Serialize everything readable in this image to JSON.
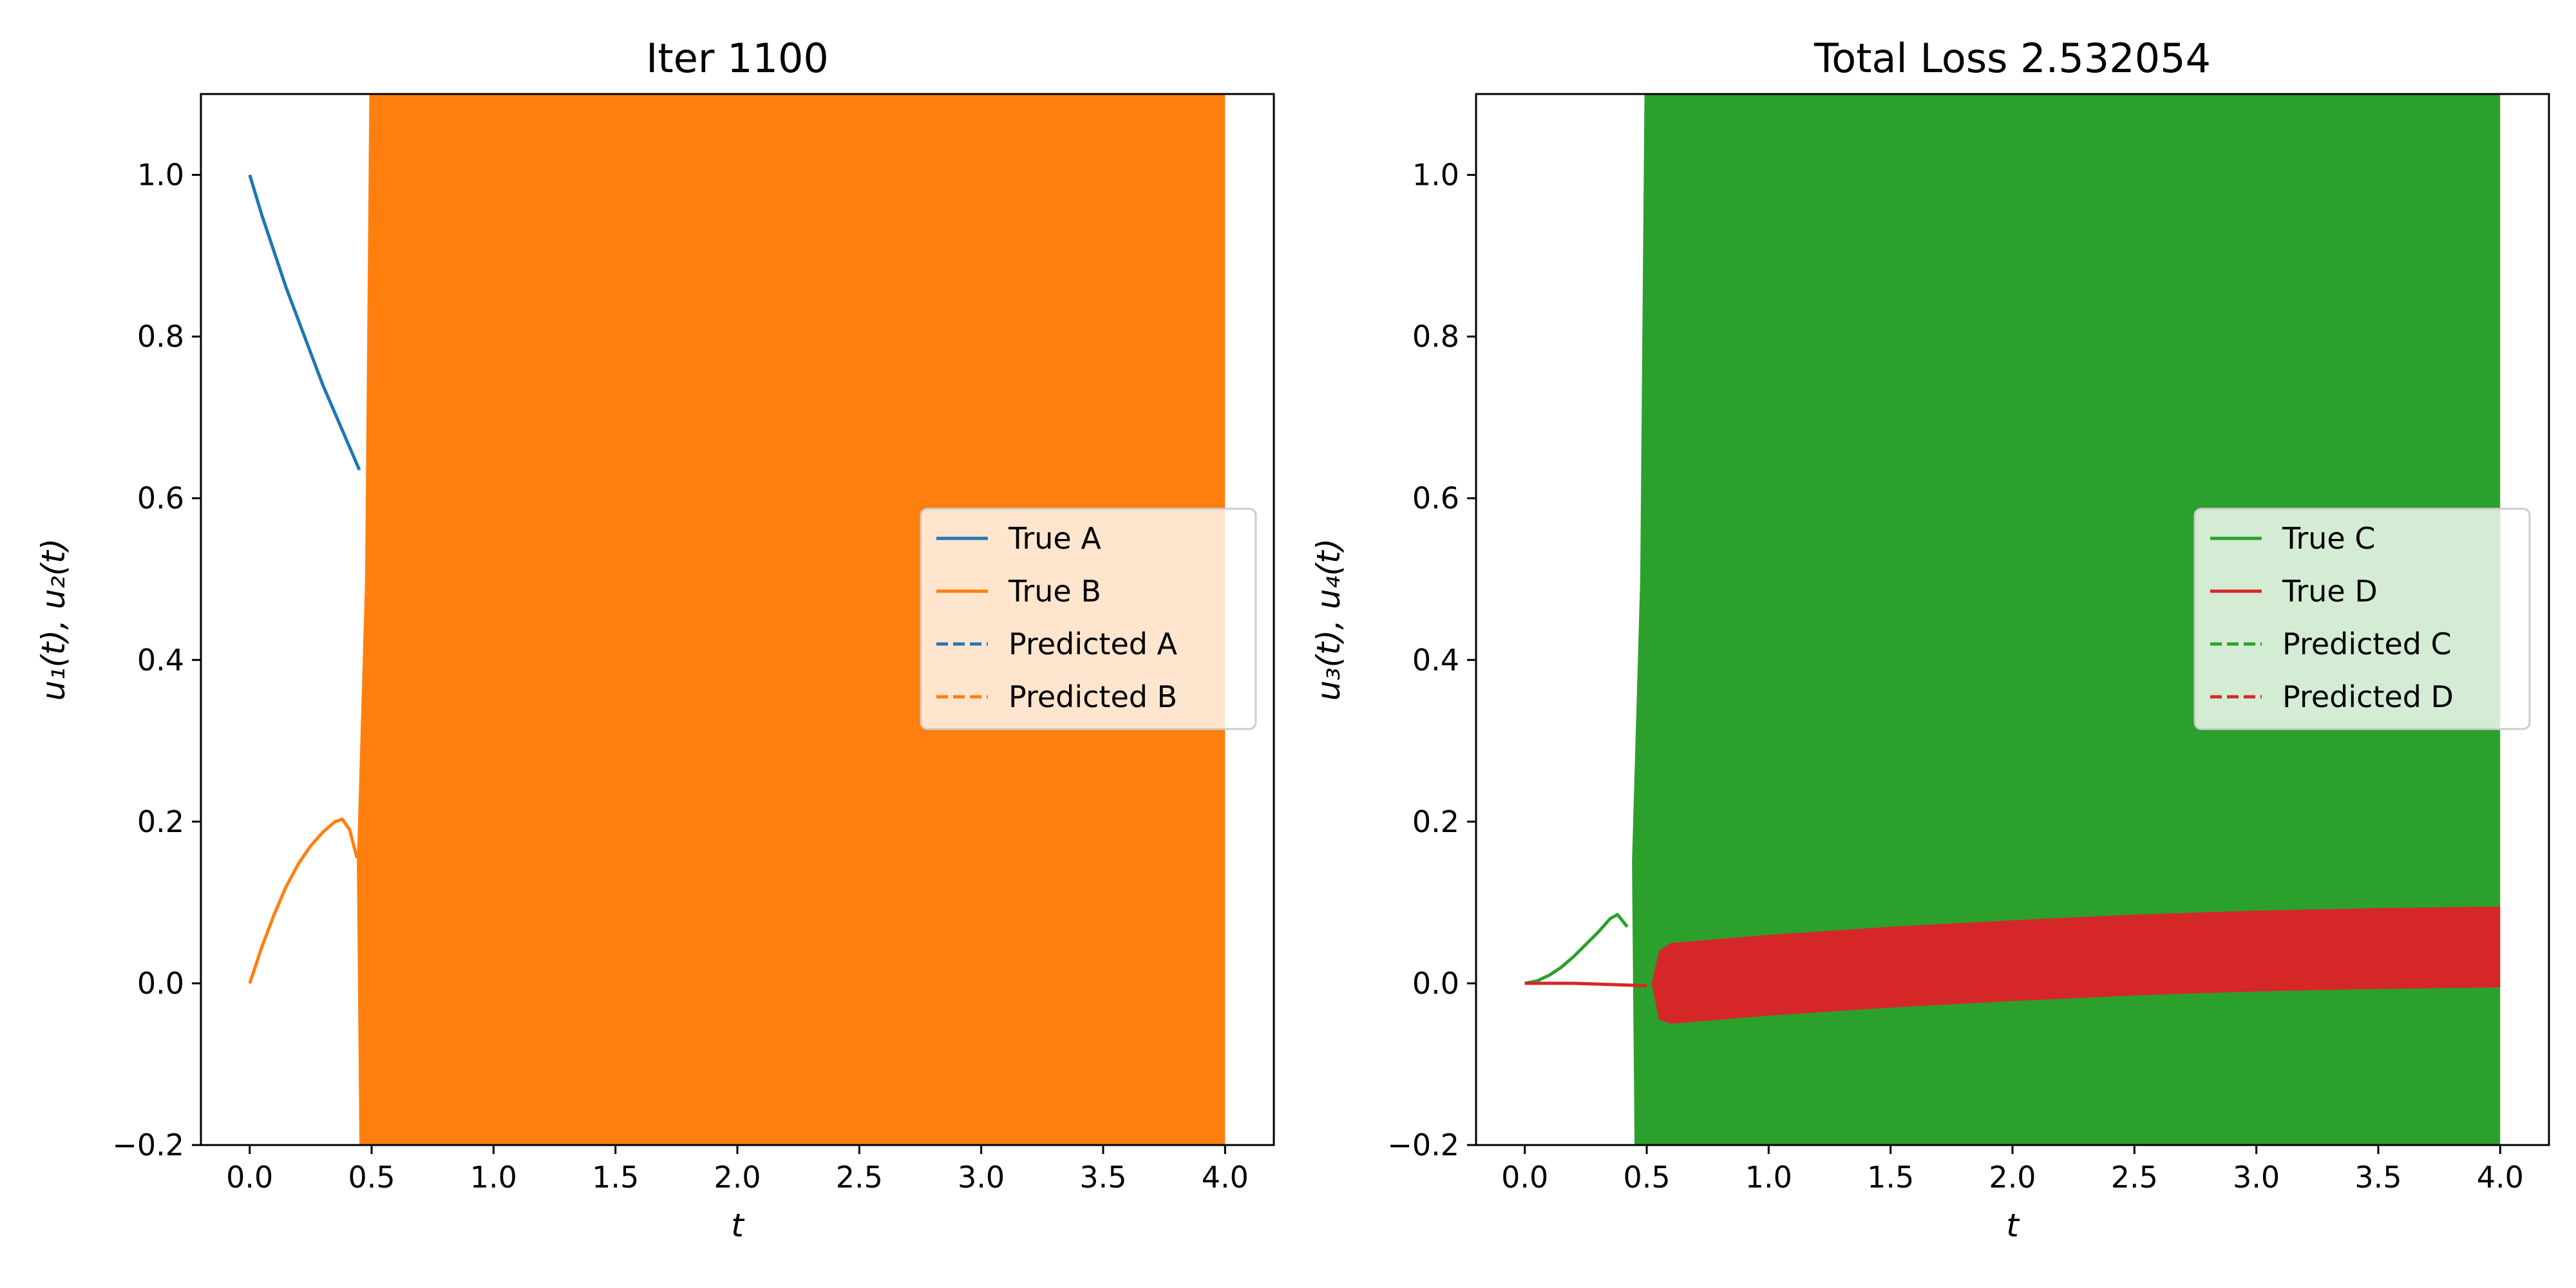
{
  "figure": {
    "colors": {
      "A": "#1f77b4",
      "B": "#ff7f0e",
      "C": "#2ca02c",
      "D": "#d62728"
    }
  },
  "chart_data": [
    {
      "type": "line",
      "title": "Iter 1100",
      "xlabel": "t",
      "ylabel": "u₁(t), u₂(t)",
      "xlim": [
        -0.2,
        4.2
      ],
      "ylim": [
        -0.2,
        1.1
      ],
      "xticks": [
        0.0,
        0.5,
        1.0,
        1.5,
        2.0,
        2.5,
        3.0,
        3.5,
        4.0
      ],
      "xtick_labels": [
        "0.0",
        "0.5",
        "1.0",
        "1.5",
        "2.0",
        "2.5",
        "3.0",
        "3.5",
        "4.0"
      ],
      "yticks": [
        -0.2,
        0.0,
        0.2,
        0.4,
        0.6,
        0.8,
        1.0
      ],
      "ytick_labels": [
        "−0.2",
        "0.0",
        "0.2",
        "0.4",
        "0.6",
        "0.8",
        "1.0"
      ],
      "grid": false,
      "legend_position": "center-right",
      "series": [
        {
          "name": "True A",
          "style": "solid",
          "color": "#1f77b4",
          "x": [
            0.0,
            0.05,
            0.1,
            0.15,
            0.2,
            0.25,
            0.3,
            0.35,
            0.4,
            0.45
          ],
          "y": [
            1.0,
            0.95,
            0.905,
            0.86,
            0.82,
            0.78,
            0.74,
            0.705,
            0.67,
            0.635
          ]
        },
        {
          "name": "True B",
          "style": "solid",
          "color": "#ff7f0e",
          "x": [
            0.0,
            0.05,
            0.1,
            0.15,
            0.2,
            0.25,
            0.3,
            0.35,
            0.38,
            0.41,
            0.44
          ],
          "y": [
            0.0,
            0.045,
            0.085,
            0.12,
            0.148,
            0.17,
            0.187,
            0.2,
            0.203,
            0.19,
            0.155
          ]
        },
        {
          "name": "Predicted A",
          "style": "dashed",
          "color": "#1f77b4",
          "x": [],
          "y": []
        },
        {
          "name": "Predicted B",
          "style": "dashed",
          "color": "#ff7f0e",
          "x": [],
          "y": []
        }
      ],
      "oscillation_bands": [
        {
          "series": "Predicted B",
          "color": "#ff7f0e",
          "x_start": 0.45,
          "x_end": 4.0,
          "lower": -0.2,
          "upper": 1.1
        }
      ]
    },
    {
      "type": "line",
      "title": "Total Loss 2.532054",
      "xlabel": "t",
      "ylabel": "u₃(t), u₄(t)",
      "xlim": [
        -0.2,
        4.2
      ],
      "ylim": [
        -0.2,
        1.1
      ],
      "xticks": [
        0.0,
        0.5,
        1.0,
        1.5,
        2.0,
        2.5,
        3.0,
        3.5,
        4.0
      ],
      "xtick_labels": [
        "0.0",
        "0.5",
        "1.0",
        "1.5",
        "2.0",
        "2.5",
        "3.0",
        "3.5",
        "4.0"
      ],
      "yticks": [
        -0.2,
        0.0,
        0.2,
        0.4,
        0.6,
        0.8,
        1.0
      ],
      "ytick_labels": [
        "−0.2",
        "0.0",
        "0.2",
        "0.4",
        "0.6",
        "0.8",
        "1.0"
      ],
      "grid": false,
      "legend_position": "center-right",
      "series": [
        {
          "name": "True C",
          "style": "solid",
          "color": "#2ca02c",
          "x": [
            0.0,
            0.05,
            0.1,
            0.15,
            0.2,
            0.25,
            0.3,
            0.35,
            0.38,
            0.42
          ],
          "y": [
            0.0,
            0.003,
            0.01,
            0.02,
            0.033,
            0.048,
            0.063,
            0.08,
            0.085,
            0.07
          ]
        },
        {
          "name": "True D",
          "style": "solid",
          "color": "#d62728",
          "x": [
            0.0,
            0.1,
            0.2,
            0.3,
            0.4,
            0.5
          ],
          "y": [
            0.0,
            0.0,
            0.0,
            -0.001,
            -0.002,
            -0.003
          ]
        },
        {
          "name": "Predicted C",
          "style": "dashed",
          "color": "#2ca02c",
          "x": [],
          "y": []
        },
        {
          "name": "Predicted D",
          "style": "dashed",
          "color": "#d62728",
          "x": [],
          "y": []
        }
      ],
      "oscillation_bands": [
        {
          "series": "Predicted C",
          "color": "#2ca02c",
          "x_start": 0.45,
          "x_end": 4.0,
          "lower": -0.2,
          "upper": 1.1
        },
        {
          "series": "Predicted D",
          "color": "#d62728",
          "x_start": 0.52,
          "x_end": 4.0,
          "upper_curve": {
            "x": [
              0.52,
              0.55,
              0.6,
              0.8,
              1.0,
              1.5,
              2.0,
              2.5,
              3.0,
              3.5,
              4.0
            ],
            "y": [
              0.0,
              0.04,
              0.05,
              0.055,
              0.06,
              0.07,
              0.078,
              0.085,
              0.09,
              0.093,
              0.095
            ]
          },
          "lower_curve": {
            "x": [
              0.52,
              0.55,
              0.6,
              0.8,
              1.0,
              1.5,
              2.0,
              2.5,
              3.0,
              3.5,
              4.0
            ],
            "y": [
              0.0,
              -0.045,
              -0.05,
              -0.045,
              -0.04,
              -0.03,
              -0.022,
              -0.015,
              -0.01,
              -0.007,
              -0.005
            ]
          }
        }
      ]
    }
  ]
}
